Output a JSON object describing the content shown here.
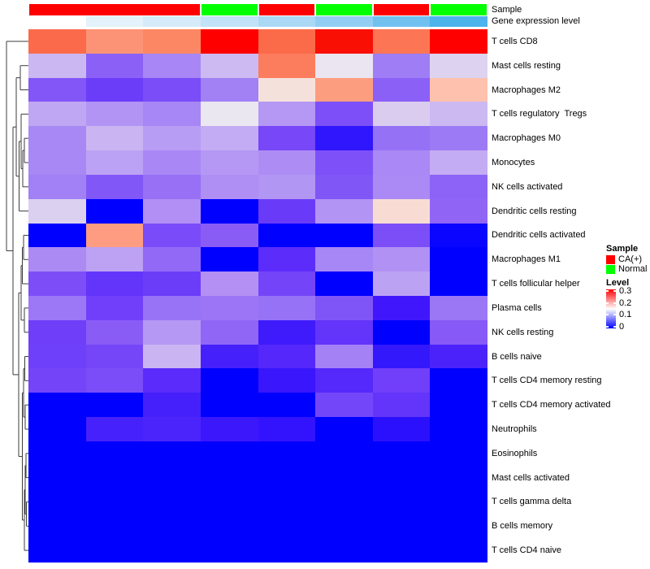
{
  "annotations": {
    "sample_label": "Sample",
    "gene_label": "Gene expression level",
    "sample_blocks": [
      {
        "label": "CA(+)",
        "color": "#FF0000",
        "span": 3
      },
      {
        "label": "Normal",
        "color": "#00FF00",
        "span": 1
      },
      {
        "label": "CA(+)",
        "color": "#FF0000",
        "span": 1
      },
      {
        "label": "Normal",
        "color": "#00FF00",
        "span": 1
      },
      {
        "label": "CA(+)",
        "color": "#FF0000",
        "span": 1
      },
      {
        "label": "Normal",
        "color": "#00FF00",
        "span": 1
      }
    ],
    "column_samples": [
      "CA(+)",
      "CA(+)",
      "CA(+)",
      "Normal",
      "CA(+)",
      "Normal",
      "CA(+)",
      "Normal"
    ],
    "gene_expression_colors": [
      "#FFFFFF",
      "#E3F2FB",
      "#D5EBF9",
      "#C2E3F7",
      "#ABD9F5",
      "#92CEF3",
      "#70C1EF",
      "#4DB3EC"
    ]
  },
  "chart_data": {
    "type": "heatmap",
    "n_columns": 8,
    "rows": [
      "T cells CD8",
      "Mast cells resting",
      "Macrophages M2",
      "T cells regulatory  Tregs",
      "Macrophages M0",
      "Monocytes",
      "NK cells activated",
      "Dendritic cells resting",
      "Dendritic cells activated",
      "Macrophages M1",
      "T cells follicular helper",
      "Plasma cells",
      "NK cells resting",
      "B cells naive",
      "T cells CD4 memory resting",
      "T cells CD4 memory activated",
      "Neutrophils",
      "Eosinophils",
      "Mast cells activated",
      "T cells gamma delta",
      "B cells memory",
      "T cells CD4 naive"
    ],
    "value_scale": {
      "min": 0,
      "max": 0.3,
      "gradient": [
        "#0000FF",
        "#FFFFFF",
        "#FF0000"
      ]
    },
    "matrix_colors": [
      [
        "#FB6B4B",
        "#FC9377",
        "#FC8765",
        "#FF0000",
        "#FB6B49",
        "#FA0F05",
        "#FC7656",
        "#FF0000"
      ],
      [
        "#CBB8F2",
        "#8A60F6",
        "#A886F5",
        "#CDBAF2",
        "#FC7C5E",
        "#EAE5F0",
        "#9F7DF5",
        "#DDD3F0"
      ],
      [
        "#8356F7",
        "#6B3DF9",
        "#7A4DF8",
        "#A281F5",
        "#F5E1DB",
        "#FD9D80",
        "#8B60F6",
        "#FEC1AD"
      ],
      [
        "#C0A7F3",
        "#B294F4",
        "#A787F5",
        "#EBE7F1",
        "#B597F4",
        "#7C4FF8",
        "#D9CCEF",
        "#CCB9F2"
      ],
      [
        "#A888F5",
        "#CAB5F2",
        "#B89DF4",
        "#C3ACF3",
        "#7747F8",
        "#2F16FC",
        "#9571F6",
        "#9D7AF5"
      ],
      [
        "#A888F5",
        "#BCA2F4",
        "#A987F5",
        "#B598F4",
        "#AD8DF4",
        "#7D50F8",
        "#AA88F5",
        "#C3ACF3"
      ],
      [
        "#A181F5",
        "#8257F7",
        "#9770F6",
        "#B08FF4",
        "#B296F4",
        "#8156F7",
        "#AB8AF5",
        "#8C63F6"
      ],
      [
        "#DCD0F0",
        "#0000FF",
        "#B18FF4",
        "#0000FF",
        "#6A3AF9",
        "#B294F4",
        "#F8DCD3",
        "#9065F6"
      ],
      [
        "#0000FF",
        "#FD9C81",
        "#7A4BF8",
        "#8A5CF6",
        "#0000FF",
        "#0000FF",
        "#7B4EF8",
        "#0905FE"
      ],
      [
        "#AC8AF4",
        "#BDA1F3",
        "#9169F6",
        "#0000FF",
        "#5B2CFA",
        "#A687F5",
        "#B191F4",
        "#0000FF"
      ],
      [
        "#7D4EF8",
        "#6334FA",
        "#6B3DF9",
        "#B590F4",
        "#7445F8",
        "#0000FF",
        "#BCA2F3",
        "#0000FF"
      ],
      [
        "#9C78F6",
        "#713FF9",
        "#9873F6",
        "#9B75F6",
        "#9672F6",
        "#8055F7",
        "#4017FC",
        "#9B77F6"
      ],
      [
        "#6E3EF9",
        "#8A5CF6",
        "#B598F4",
        "#9066F6",
        "#3F1AFB",
        "#6334FA",
        "#0000FF",
        "#8759F7"
      ],
      [
        "#6F40F9",
        "#7546F8",
        "#CBB4F2",
        "#4520FB",
        "#5527FB",
        "#A482F5",
        "#3418FC",
        "#4C22FB"
      ],
      [
        "#7445F8",
        "#7B4DF8",
        "#5A2BFA",
        "#0000FF",
        "#3916FC",
        "#5528FB",
        "#713EF9",
        "#0000FF"
      ],
      [
        "#0000FF",
        "#0000FF",
        "#4520FB",
        "#0000FF",
        "#0000FF",
        "#7347F9",
        "#6335FA",
        "#0000FF"
      ],
      [
        "#0000FF",
        "#4721FB",
        "#4B24FB",
        "#3C17FC",
        "#3313FD",
        "#0000FF",
        "#2B10FD",
        "#0000FF"
      ],
      [
        "#0000FF",
        "#0000FF",
        "#0000FF",
        "#0000FF",
        "#0000FF",
        "#0000FF",
        "#0000FF",
        "#0000FF"
      ],
      [
        "#0000FF",
        "#0000FF",
        "#0000FF",
        "#0000FF",
        "#0000FF",
        "#0000FF",
        "#0000FF",
        "#0000FF"
      ],
      [
        "#0000FF",
        "#0000FF",
        "#0000FF",
        "#0000FF",
        "#0000FF",
        "#0000FF",
        "#0000FF",
        "#0000FF"
      ],
      [
        "#0000FF",
        "#0000FF",
        "#0000FF",
        "#0000FF",
        "#0000FF",
        "#0000FF",
        "#0000FF",
        "#0000FF"
      ],
      [
        "#0000FF",
        "#0000FF",
        "#0000FF",
        "#0000FF",
        "#0000FF",
        "#0000FF",
        "#0000FF",
        "#0000FF"
      ]
    ],
    "dendrogram": {
      "x": 8,
      "children": [
        {
          "leaf": 0
        },
        {
          "x": 16,
          "children": [
            {
              "x": 20,
              "children": [
                {
                  "x": 25,
                  "children": [
                    {
                      "leaf": 1
                    },
                    {
                      "leaf": 2
                    }
                  ]
                },
                {
                  "x": 23.5,
                  "children": [
                    {
                      "x": 26,
                      "children": [
                        {
                          "leaf": 3
                        },
                        {
                          "x": 28,
                          "children": [
                            {
                              "x": 30,
                              "children": [
                                {
                                  "leaf": 4
                                },
                                {
                                  "leaf": 5
                                }
                              ]
                            },
                            {
                              "leaf": 6
                            }
                          ]
                        }
                      ]
                    },
                    {
                      "leaf": 7
                    }
                  ]
                }
              ]
            },
            {
              "x": 23,
              "children": [
                {
                  "x": 26,
                  "children": [
                    {
                      "x": 27.5,
                      "children": [
                        {
                          "x": 29,
                          "children": [
                            {
                              "leaf": 8
                            },
                            {
                              "leaf": 9
                            }
                          ]
                        },
                        {
                          "leaf": 10
                        }
                      ]
                    },
                    {
                      "x": 30,
                      "children": [
                        {
                          "leaf": 11
                        },
                        {
                          "leaf": 12
                        }
                      ]
                    }
                  ]
                },
                {
                  "x": 27.5,
                  "children": [
                    {
                      "x": 29,
                      "children": [
                        {
                          "x": 30.5,
                          "children": [
                            {
                              "leaf": 13
                            },
                            {
                              "leaf": 14
                            }
                          ]
                        },
                        {
                          "x": 31,
                          "children": [
                            {
                              "leaf": 15
                            },
                            {
                              "leaf": 16
                            }
                          ]
                        }
                      ]
                    },
                    {
                      "x": 30,
                      "children": [
                        {
                          "x": 31,
                          "children": [
                            {
                              "x": 32,
                              "children": [
                                {
                                  "leaf": 17
                                },
                                {
                                  "leaf": 18
                                }
                              ]
                            },
                            {
                              "x": 32.5,
                              "children": [
                                {
                                  "leaf": 19
                                },
                                {
                                  "leaf": 20
                                }
                              ]
                            }
                          ]
                        },
                        {
                          "leaf": 21
                        }
                      ]
                    }
                  ]
                }
              ]
            }
          ]
        }
      ]
    }
  },
  "legend": {
    "sample": {
      "title": "Sample",
      "items": [
        {
          "label": "CA(+)",
          "color": "#FF0000"
        },
        {
          "label": "Normal",
          "color": "#00FF00"
        }
      ]
    },
    "level": {
      "title": "Level",
      "ticks": [
        "0.3",
        "0.2",
        "0.1",
        "0"
      ],
      "gradient_top": "#FF0000",
      "gradient_mid": "#FFFFFF",
      "gradient_bottom": "#0000FF"
    }
  }
}
